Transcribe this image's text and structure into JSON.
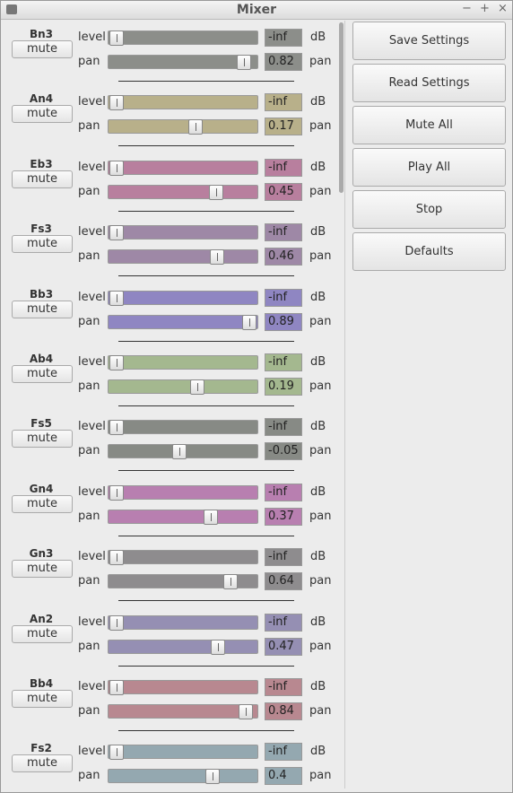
{
  "window": {
    "title": "Mixer"
  },
  "labels": {
    "mute": "mute",
    "level": "level",
    "db": "dB",
    "pan": "pan"
  },
  "pan_range": [
    -1,
    1
  ],
  "channels": [
    {
      "name": "Bn3",
      "level": "-inf",
      "pan": 0.82,
      "color": "#8c8e8a"
    },
    {
      "name": "An4",
      "level": "-inf",
      "pan": 0.17,
      "color": "#b8b08a"
    },
    {
      "name": "Eb3",
      "level": "-inf",
      "pan": 0.45,
      "color": "#b87f9e"
    },
    {
      "name": "Fs3",
      "level": "-inf",
      "pan": 0.46,
      "color": "#9e88a6"
    },
    {
      "name": "Bb3",
      "level": "-inf",
      "pan": 0.89,
      "color": "#8f86c2"
    },
    {
      "name": "Ab4",
      "level": "-inf",
      "pan": 0.19,
      "color": "#a4b88f"
    },
    {
      "name": "Fs5",
      "level": "-inf",
      "pan": -0.05,
      "color": "#878a85"
    },
    {
      "name": "Gn4",
      "level": "-inf",
      "pan": 0.37,
      "color": "#b87fb0"
    },
    {
      "name": "Gn3",
      "level": "-inf",
      "pan": 0.64,
      "color": "#8e8c8e"
    },
    {
      "name": "An2",
      "level": "-inf",
      "pan": 0.47,
      "color": "#958fb3"
    },
    {
      "name": "Bb4",
      "level": "-inf",
      "pan": 0.84,
      "color": "#b88890"
    },
    {
      "name": "Fs2",
      "level": "-inf",
      "pan": 0.4,
      "color": "#94a8b0"
    }
  ],
  "buttons": [
    "Save Settings",
    "Read Settings",
    "Mute All",
    "Play All",
    "Stop",
    "Defaults"
  ]
}
